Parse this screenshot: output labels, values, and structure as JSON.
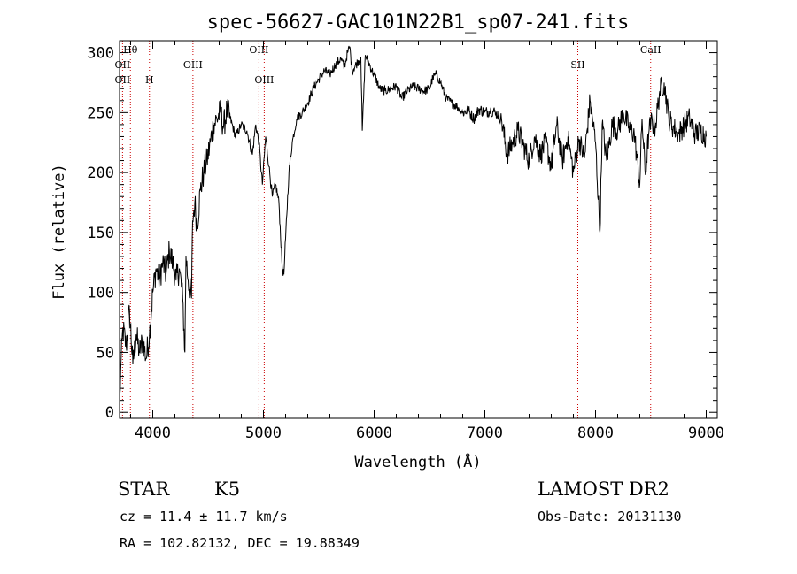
{
  "chart_data": {
    "type": "line",
    "title": "spec-56627-GAC101N22B1_sp07-241.fits",
    "xlabel": "Wavelength (Å)",
    "ylabel": "Flux (relative)",
    "xlim": [
      3700,
      9100
    ],
    "ylim": [
      -5,
      310
    ],
    "x_ticks": [
      4000,
      5000,
      6000,
      7000,
      8000,
      9000
    ],
    "y_ticks": [
      0,
      50,
      100,
      150,
      200,
      250,
      300
    ],
    "grid": false,
    "series": [
      {
        "x": [
          3700,
          3710,
          3730,
          3760,
          3790,
          3820,
          3850,
          3880,
          3910,
          3940,
          3970,
          4000,
          4030,
          4060,
          4090,
          4120,
          4150,
          4180,
          4210,
          4240,
          4270,
          4290,
          4300,
          4320,
          4350,
          4360,
          4380,
          4400,
          4430,
          4460,
          4490,
          4520,
          4550,
          4580,
          4610,
          4640,
          4670,
          4700,
          4750,
          4800,
          4850,
          4900,
          4930,
          4960,
          4990,
          5020,
          5050,
          5080,
          5110,
          5140,
          5170,
          5185,
          5200,
          5230,
          5260,
          5300,
          5350,
          5400,
          5450,
          5500,
          5550,
          5600,
          5650,
          5700,
          5730,
          5760,
          5780,
          5800,
          5850,
          5880,
          5893,
          5920,
          5950,
          5980,
          6000,
          6050,
          6100,
          6150,
          6200,
          6250,
          6300,
          6350,
          6400,
          6450,
          6500,
          6530,
          6563,
          6600,
          6650,
          6700,
          6750,
          6800,
          6850,
          6900,
          6950,
          7000,
          7050,
          7100,
          7150,
          7200,
          7250,
          7300,
          7350,
          7400,
          7450,
          7500,
          7550,
          7600,
          7650,
          7700,
          7750,
          7800,
          7850,
          7900,
          7950,
          8000,
          8040,
          8060,
          8100,
          8150,
          8200,
          8250,
          8300,
          8350,
          8400,
          8420,
          8450,
          8480,
          8500,
          8540,
          8580,
          8620,
          8662,
          8700,
          8750,
          8800,
          8850,
          8900,
          8950,
          9000
        ],
        "y": [
          0,
          35,
          70,
          55,
          85,
          40,
          65,
          50,
          60,
          45,
          65,
          100,
          120,
          110,
          125,
          115,
          135,
          125,
          110,
          120,
          95,
          50,
          130,
          110,
          95,
          160,
          175,
          155,
          185,
          200,
          210,
          225,
          240,
          245,
          250,
          238,
          252,
          245,
          230,
          240,
          235,
          215,
          240,
          225,
          190,
          230,
          205,
          180,
          190,
          175,
          120,
          115,
          145,
          200,
          225,
          245,
          250,
          258,
          270,
          278,
          285,
          282,
          290,
          295,
          288,
          300,
          305,
          285,
          292,
          296,
          235,
          298,
          292,
          285,
          282,
          270,
          268,
          270,
          272,
          262,
          268,
          272,
          270,
          268,
          270,
          279,
          282,
          275,
          262,
          258,
          255,
          250,
          252,
          245,
          253,
          250,
          252,
          250,
          245,
          215,
          225,
          235,
          222,
          210,
          230,
          215,
          225,
          205,
          240,
          210,
          230,
          200,
          228,
          212,
          260,
          225,
          150,
          240,
          210,
          240,
          235,
          250,
          238,
          232,
          190,
          245,
          198,
          232,
          242,
          238,
          268,
          275,
          245,
          238,
          232,
          240,
          245,
          232,
          235,
          230
        ]
      }
    ],
    "spectral_lines": [
      {
        "label": "Hθ",
        "x": 3798,
        "row": 0
      },
      {
        "label": "OII",
        "x": 3727,
        "row": 1
      },
      {
        "label": "OII",
        "x": 3727,
        "row": 2
      },
      {
        "label": "H",
        "x": 3970,
        "row": 2
      },
      {
        "label": "OIII",
        "x": 4363,
        "row": 1
      },
      {
        "label": "OIII",
        "x": 4959,
        "row": 0
      },
      {
        "label": "OIII",
        "x": 5007,
        "row": 2
      },
      {
        "label": "SII",
        "x": 7840,
        "row": 1
      },
      {
        "label": "CaII",
        "x": 8498,
        "row": 0
      }
    ],
    "line_marker_color": "#cc0000",
    "data_color": "#000000"
  },
  "info": {
    "object_class": "STAR",
    "subclass": "K5",
    "redshift_text": "cz = 11.4 ± 11.7 km/s",
    "coords_text": "RA = 102.82132, DEC =  19.88349",
    "survey": "LAMOST DR2",
    "obs_date": "Obs-Date: 20131130"
  }
}
